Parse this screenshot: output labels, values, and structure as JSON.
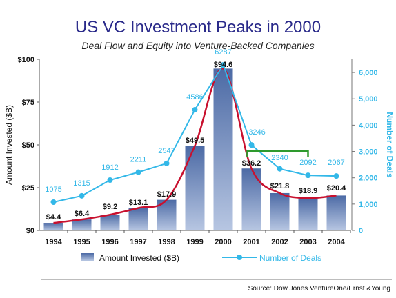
{
  "title": "US VC Investment Peaks in 2000",
  "subtitle": "Deal Flow and Equity into Venture-Backed Companies",
  "source": "Source: Dow Jones VentureOne/Ernst &Young",
  "chart_data": {
    "type": "bar",
    "categories": [
      "1994",
      "1995",
      "1996",
      "1997",
      "1998",
      "1999",
      "2000",
      "2001",
      "2002",
      "2003",
      "2004"
    ],
    "series": [
      {
        "name": "Amount Invested ($B)",
        "type": "bar",
        "axis": "left",
        "values": [
          4.4,
          6.4,
          9.2,
          13.1,
          17.9,
          49.5,
          94.6,
          36.2,
          21.8,
          18.9,
          20.4
        ],
        "labels": [
          "$4.4",
          "$6.4",
          "$9.2",
          "$13.1",
          "$17.9",
          "$49.5",
          "$94.6",
          "$36.2",
          "$21.8",
          "$18.9",
          "$20.4"
        ],
        "color": "#6d86b3"
      },
      {
        "name": "Number of Deals",
        "type": "line",
        "axis": "right",
        "values": [
          1075,
          1315,
          1912,
          2211,
          2547,
          4586,
          6287,
          3246,
          2340,
          2092,
          2067
        ],
        "labels": [
          "1075",
          "1315",
          "1912",
          "2211",
          "2547",
          "4586",
          "6287",
          "3246",
          "2340",
          "2092",
          "2067"
        ],
        "color": "#33b8e8"
      }
    ],
    "trend_color": "#c8102e",
    "bracket_color": "#2e9a2e",
    "bracket_span": [
      "2001",
      "2003"
    ],
    "left_axis": {
      "label": "Amount Invested ($B)",
      "range": [
        0,
        100
      ],
      "ticks": [
        0,
        25,
        50,
        75,
        100
      ],
      "tick_labels": [
        "$0",
        "$25",
        "$50",
        "$75",
        "$100"
      ]
    },
    "right_axis": {
      "label": "Number of Deals",
      "range": [
        0,
        6500
      ],
      "ticks": [
        0,
        1000,
        2000,
        3000,
        4000,
        5000,
        6000
      ],
      "tick_labels": [
        "0",
        "1,000",
        "2,000",
        "3,000",
        "4,000",
        "5,000",
        "6,000"
      ],
      "color": "#33b8e8"
    },
    "legend_position": "bottom",
    "grid": false
  }
}
